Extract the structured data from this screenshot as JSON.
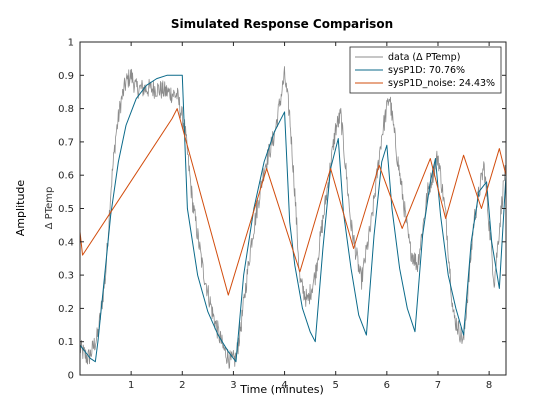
{
  "chart_data": {
    "type": "line",
    "title": "Simulated Response Comparison",
    "xlabel": "Time (minutes)",
    "ylabel": "Amplitude",
    "channel_label": "Δ PTemp",
    "xlim": [
      0,
      8.33
    ],
    "ylim": [
      0,
      1
    ],
    "xticks": [
      "1",
      "2",
      "3",
      "4",
      "5",
      "6",
      "7",
      "8"
    ],
    "yticks": [
      "0",
      "0.1",
      "0.2",
      "0.3",
      "0.4",
      "0.5",
      "0.6",
      "0.7",
      "0.8",
      "0.9",
      "1"
    ],
    "legend_position": "top-right",
    "series": [
      {
        "name": "data (Δ PTemp)",
        "color": "#8c8c8c",
        "noisy": true,
        "x": [
          0,
          0.15,
          0.2,
          0.35,
          0.5,
          0.6,
          0.7,
          0.8,
          0.9,
          1.0,
          1.1,
          1.3,
          1.5,
          1.7,
          1.9,
          2.05,
          2.2,
          2.4,
          2.6,
          2.8,
          2.95,
          3.05,
          3.15,
          3.35,
          3.6,
          3.8,
          4.0,
          4.1,
          4.2,
          4.3,
          4.45,
          4.6,
          4.8,
          5.0,
          5.1,
          5.3,
          5.5,
          5.7,
          5.9,
          6.05,
          6.2,
          6.45,
          6.6,
          6.8,
          7.0,
          7.15,
          7.3,
          7.5,
          7.7,
          7.9,
          8.1,
          8.3
        ],
        "y": [
          0.08,
          0.05,
          0.06,
          0.12,
          0.3,
          0.55,
          0.72,
          0.82,
          0.88,
          0.9,
          0.86,
          0.86,
          0.86,
          0.85,
          0.84,
          0.74,
          0.52,
          0.32,
          0.18,
          0.08,
          0.04,
          0.05,
          0.15,
          0.4,
          0.62,
          0.72,
          0.9,
          0.78,
          0.55,
          0.28,
          0.22,
          0.3,
          0.52,
          0.74,
          0.78,
          0.45,
          0.28,
          0.46,
          0.72,
          0.84,
          0.66,
          0.38,
          0.33,
          0.55,
          0.66,
          0.48,
          0.18,
          0.1,
          0.46,
          0.63,
          0.28,
          0.6
        ]
      },
      {
        "name": "sysP1D: 70.76%",
        "color": "#0b6a8a",
        "noisy": false,
        "x": [
          0,
          0.2,
          0.3,
          0.35,
          0.45,
          0.6,
          0.75,
          0.9,
          1.1,
          1.3,
          1.5,
          1.7,
          1.9,
          2.0,
          2.1,
          2.3,
          2.5,
          2.7,
          2.9,
          3.05,
          3.2,
          3.4,
          3.6,
          3.8,
          4.0,
          4.1,
          4.2,
          4.35,
          4.5,
          4.6,
          4.75,
          4.9,
          5.05,
          5.15,
          5.3,
          5.45,
          5.6,
          5.75,
          5.9,
          6.0,
          6.1,
          6.25,
          6.4,
          6.55,
          6.7,
          6.85,
          6.95,
          7.05,
          7.2,
          7.35,
          7.5,
          7.65,
          7.8,
          7.95,
          8.05,
          8.2,
          8.33
        ],
        "y": [
          0.09,
          0.05,
          0.04,
          0.1,
          0.25,
          0.48,
          0.64,
          0.75,
          0.83,
          0.87,
          0.89,
          0.9,
          0.9,
          0.9,
          0.5,
          0.3,
          0.19,
          0.12,
          0.07,
          0.04,
          0.3,
          0.5,
          0.64,
          0.73,
          0.79,
          0.46,
          0.33,
          0.2,
          0.13,
          0.1,
          0.38,
          0.62,
          0.71,
          0.49,
          0.32,
          0.18,
          0.12,
          0.42,
          0.64,
          0.69,
          0.5,
          0.32,
          0.2,
          0.13,
          0.42,
          0.58,
          0.65,
          0.48,
          0.3,
          0.2,
          0.12,
          0.4,
          0.55,
          0.58,
          0.4,
          0.26,
          0.6
        ]
      },
      {
        "name": "sysP1D_noise: 24.43%",
        "color": "#d24d0e",
        "noisy": false,
        "x": [
          0,
          0.05,
          1.8,
          1.9,
          2.9,
          3.65,
          4.3,
          4.9,
          5.35,
          5.85,
          6.3,
          6.85,
          7.15,
          7.5,
          7.85,
          8.2,
          8.33
        ],
        "y": [
          0.43,
          0.36,
          0.77,
          0.8,
          0.24,
          0.62,
          0.31,
          0.62,
          0.38,
          0.63,
          0.44,
          0.65,
          0.47,
          0.66,
          0.5,
          0.68,
          0.6
        ]
      }
    ]
  }
}
